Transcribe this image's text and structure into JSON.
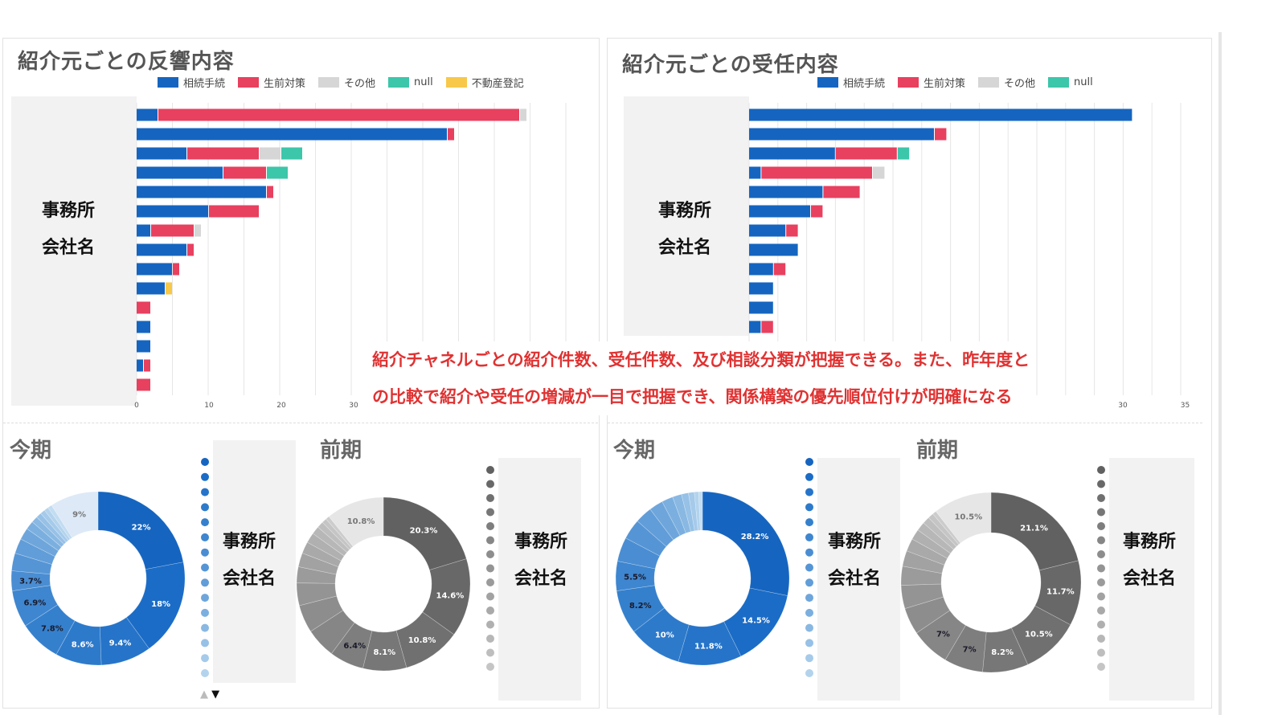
{
  "legend_colors": {
    "相続手続": "#1565c0",
    "生前対策": "#e8405f",
    "その他": "#d6d6d6",
    "null": "#3cc6aa",
    "不動産登記": "#f8c84a"
  },
  "mask_label": [
    "事務所",
    "会社名"
  ],
  "annotation": [
    "紹介チャネルごとの紹介件数、受任件数、及び相談分類が把握できる。また、昨年度と",
    "の比較で紹介や受任の増減が一目で把握でき、関係構築の優先順位付けが明確になる"
  ],
  "pager": {
    "up": "▲",
    "down": "▼"
  },
  "chart_data": [
    {
      "type": "bar",
      "orientation": "horizontal",
      "stacked": true,
      "title": "紹介元ごとの反響内容",
      "legend": [
        "相続手続",
        "生前対策",
        "その他",
        "null",
        "不動産登記"
      ],
      "x_ticks": [
        "0",
        "10",
        "20",
        "30"
      ],
      "xlim": [
        0,
        60
      ],
      "series": [
        {
          "name": "相続手続",
          "values": [
            3,
            43,
            7,
            12,
            18,
            10,
            2,
            7,
            5,
            4,
            0,
            2,
            2,
            1,
            0
          ]
        },
        {
          "name": "生前対策",
          "values": [
            50,
            1,
            10,
            6,
            1,
            7,
            6,
            1,
            1,
            0,
            2,
            0,
            0,
            1,
            2
          ]
        },
        {
          "name": "その他",
          "values": [
            1,
            0,
            3,
            0,
            0,
            0,
            1,
            0,
            0,
            0,
            0,
            0,
            0,
            0,
            0
          ]
        },
        {
          "name": "null",
          "values": [
            0,
            0,
            3,
            3,
            0,
            0,
            0,
            0,
            0,
            0,
            0,
            0,
            0,
            0,
            0
          ]
        },
        {
          "name": "不動産登記",
          "values": [
            0,
            0,
            0,
            0,
            0,
            0,
            0,
            0,
            0,
            1,
            0,
            0,
            0,
            0,
            0
          ]
        }
      ]
    },
    {
      "type": "bar",
      "orientation": "horizontal",
      "stacked": true,
      "title": "紹介元ごとの受任内容",
      "legend": [
        "相続手続",
        "生前対策",
        "その他",
        "null"
      ],
      "x_ticks": [
        "30",
        "35"
      ],
      "xlim": [
        0,
        35
      ],
      "series": [
        {
          "name": "相続手続",
          "values": [
            31,
            15,
            7,
            1,
            6,
            5,
            3,
            4,
            2,
            2,
            2,
            1
          ]
        },
        {
          "name": "生前対策",
          "values": [
            0,
            1,
            5,
            9,
            3,
            1,
            1,
            0,
            1,
            0,
            0,
            1
          ]
        },
        {
          "name": "その他",
          "values": [
            0,
            0,
            0,
            1,
            0,
            0,
            0,
            0,
            0,
            0,
            0,
            0
          ]
        },
        {
          "name": "null",
          "values": [
            0,
            0,
            1,
            0,
            0,
            0,
            0,
            0,
            0,
            0,
            0,
            0
          ]
        }
      ]
    },
    {
      "type": "pie",
      "donut": true,
      "title": "今期",
      "palette": "blue",
      "values": [
        22,
        18,
        9.4,
        8.6,
        7.8,
        6.9,
        3.7,
        3.3,
        2.8,
        2.2,
        1.6,
        1.2,
        1,
        0.9,
        0.8,
        0.8,
        9
      ],
      "labels": [
        "22%",
        "18%",
        "9.4%",
        "8.6%",
        "7.8%",
        "6.9%",
        "3.7%",
        "",
        "",
        "",
        "",
        "",
        "",
        "",
        "",
        "",
        "9%"
      ]
    },
    {
      "type": "pie",
      "donut": true,
      "title": "前期",
      "palette": "gray",
      "values": [
        20.3,
        14.6,
        10.8,
        8.1,
        6.4,
        5.6,
        5.2,
        4.2,
        3,
        2.6,
        2.2,
        1.9,
        1.5,
        1.2,
        0.9,
        0.7,
        10.8
      ],
      "labels": [
        "20.3%",
        "14.6%",
        "10.8%",
        "8.1%",
        "6.4%",
        "",
        "",
        "",
        "",
        "",
        "",
        "",
        "",
        "",
        "",
        "",
        "10.8%"
      ]
    },
    {
      "type": "pie",
      "donut": true,
      "title": "今期",
      "palette": "blue",
      "values": [
        28.2,
        14.5,
        11.8,
        10,
        8.2,
        5.5,
        4.5,
        3.8,
        3.2,
        2.6,
        2.1,
        1.7,
        1.3,
        1.1,
        0.8,
        0.7
      ],
      "labels": [
        "28.2%",
        "14.5%",
        "11.8%",
        "10%",
        "8.2%",
        "5.5%",
        "",
        "",
        "",
        "",
        "",
        "",
        "",
        "",
        "",
        ""
      ]
    },
    {
      "type": "pie",
      "donut": true,
      "title": "前期",
      "palette": "gray",
      "values": [
        21.1,
        11.7,
        10.5,
        8.2,
        7,
        7,
        4.8,
        4.2,
        3.4,
        2.8,
        2.3,
        1.9,
        1.6,
        1.3,
        1,
        0.7,
        10.5
      ],
      "labels": [
        "21.1%",
        "11.7%",
        "10.5%",
        "8.2%",
        "7%",
        "7%",
        "",
        "",
        "",
        "",
        "",
        "",
        "",
        "",
        "",
        "",
        "10.5%"
      ]
    }
  ]
}
